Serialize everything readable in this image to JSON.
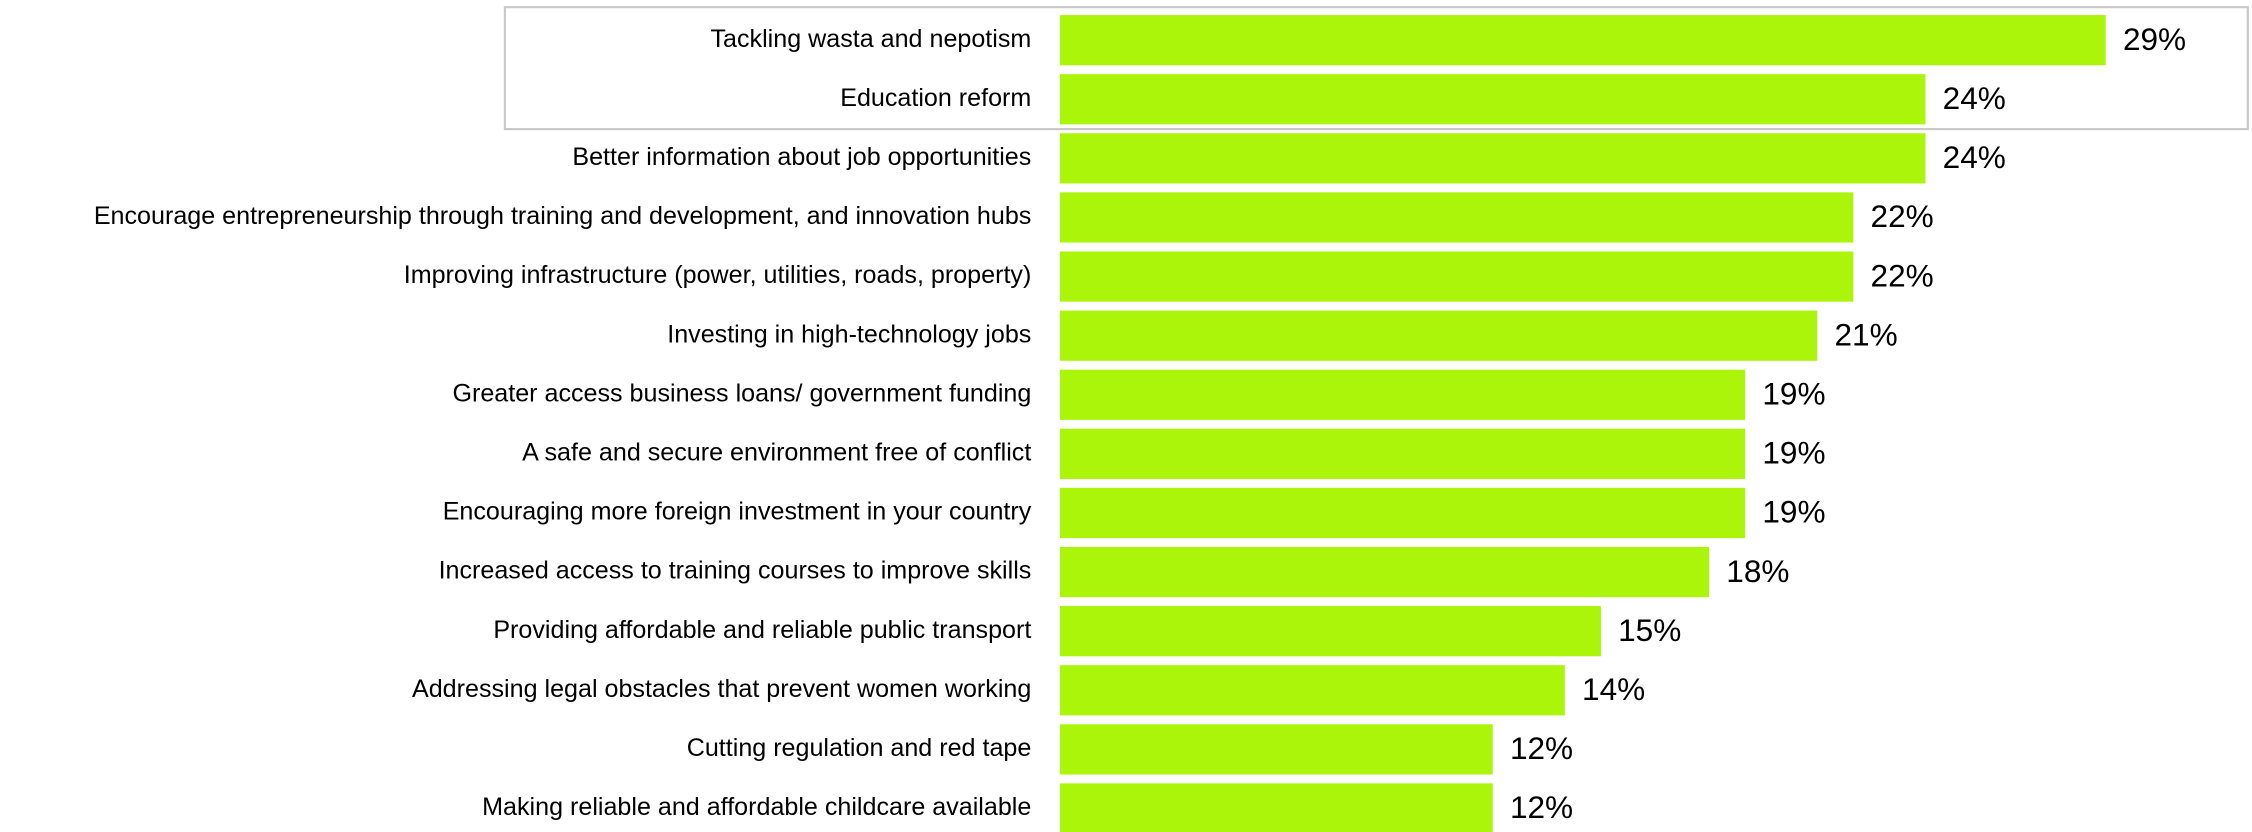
{
  "chart_data": {
    "type": "bar",
    "orientation": "horizontal",
    "color": "#aaf50a",
    "categories": [
      "Tackling wasta and nepotism",
      "Education reform",
      "Better information about job opportunities",
      "Encourage entrepreneurship through training and development, and innovation hubs",
      "Improving infrastructure (power, utilities, roads, property)",
      "Investing in high-technology jobs",
      "Greater access business loans/ government funding",
      "A safe and secure environment free of conflict",
      "Encouraging more foreign investment in your country",
      "Increased access to training courses to improve skills",
      "Providing affordable and reliable public transport",
      "Addressing legal obstacles that prevent women working",
      "Cutting regulation and red tape",
      "Making reliable and affordable childcare available"
    ],
    "values": [
      29,
      24,
      24,
      22,
      22,
      21,
      19,
      19,
      19,
      18,
      15,
      14,
      12,
      12
    ],
    "value_labels": [
      "29%",
      "24%",
      "24%",
      "22%",
      "22%",
      "21%",
      "19%",
      "19%",
      "19%",
      "18%",
      "15%",
      "14%",
      "12%",
      "12%"
    ]
  }
}
